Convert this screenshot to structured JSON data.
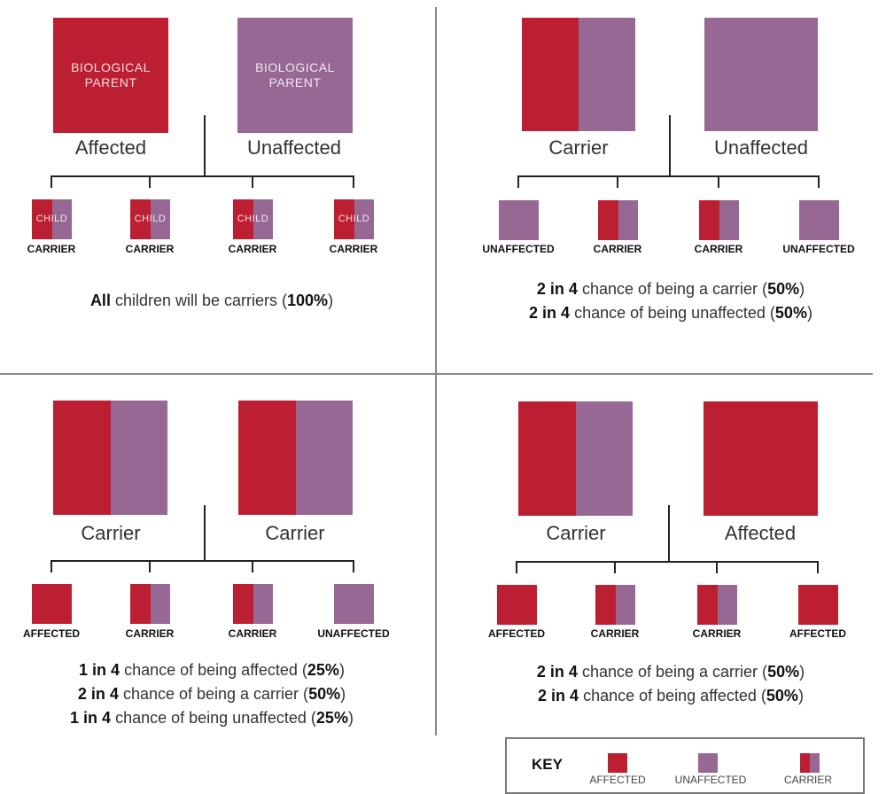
{
  "colors": {
    "affected": "#bd1f32",
    "unaffected": "#966893",
    "line": "#222222"
  },
  "panels": [
    {
      "id": "top-left",
      "parents": [
        {
          "type": "affected",
          "text": [
            "BIOLOGICAL",
            "PARENT"
          ],
          "label": "Affected"
        },
        {
          "type": "unaffected",
          "text": [
            "BIOLOGICAL",
            "PARENT"
          ],
          "label": "Unaffected"
        }
      ],
      "children": [
        {
          "type": "carrier",
          "text": "CHILD",
          "label": "CARRIER"
        },
        {
          "type": "carrier",
          "text": "CHILD",
          "label": "CARRIER"
        },
        {
          "type": "carrier",
          "text": "CHILD",
          "label": "CARRIER"
        },
        {
          "type": "carrier",
          "text": "CHILD",
          "label": "CARRIER"
        }
      ],
      "summary": [
        [
          {
            "b": true,
            "t": "All"
          },
          {
            "b": false,
            "t": " children will be carriers ("
          },
          {
            "b": true,
            "t": "100%"
          },
          {
            "b": false,
            "t": ")"
          }
        ]
      ]
    },
    {
      "id": "top-right",
      "parents": [
        {
          "type": "carrier",
          "text": [],
          "label": "Carrier"
        },
        {
          "type": "unaffected",
          "text": [],
          "label": "Unaffected"
        }
      ],
      "children": [
        {
          "type": "unaffected",
          "text": "",
          "label": "UNAFFECTED"
        },
        {
          "type": "carrier",
          "text": "",
          "label": "CARRIER"
        },
        {
          "type": "carrier",
          "text": "",
          "label": "CARRIER"
        },
        {
          "type": "unaffected",
          "text": "",
          "label": "UNAFFECTED"
        }
      ],
      "summary": [
        [
          {
            "b": true,
            "t": "2 in 4"
          },
          {
            "b": false,
            "t": " chance of being a carrier ("
          },
          {
            "b": true,
            "t": "50%"
          },
          {
            "b": false,
            "t": ")"
          }
        ],
        [
          {
            "b": true,
            "t": "2 in 4"
          },
          {
            "b": false,
            "t": " chance of being unaffected ("
          },
          {
            "b": true,
            "t": "50%"
          },
          {
            "b": false,
            "t": ")"
          }
        ]
      ]
    },
    {
      "id": "bottom-left",
      "parents": [
        {
          "type": "carrier",
          "text": [],
          "label": "Carrier"
        },
        {
          "type": "carrier",
          "text": [],
          "label": "Carrier"
        }
      ],
      "children": [
        {
          "type": "affected",
          "text": "",
          "label": "AFFECTED"
        },
        {
          "type": "carrier",
          "text": "",
          "label": "CARRIER"
        },
        {
          "type": "carrier",
          "text": "",
          "label": "CARRIER"
        },
        {
          "type": "unaffected",
          "text": "",
          "label": "UNAFFECTED"
        }
      ],
      "summary": [
        [
          {
            "b": true,
            "t": "1 in 4"
          },
          {
            "b": false,
            "t": " chance of being affected ("
          },
          {
            "b": true,
            "t": "25%"
          },
          {
            "b": false,
            "t": ")"
          }
        ],
        [
          {
            "b": true,
            "t": "2 in 4"
          },
          {
            "b": false,
            "t": " chance of being a carrier ("
          },
          {
            "b": true,
            "t": "50%"
          },
          {
            "b": false,
            "t": ")"
          }
        ],
        [
          {
            "b": true,
            "t": "1 in 4"
          },
          {
            "b": false,
            "t": " chance of being unaffected ("
          },
          {
            "b": true,
            "t": "25%"
          },
          {
            "b": false,
            "t": ")"
          }
        ]
      ]
    },
    {
      "id": "bottom-right",
      "parents": [
        {
          "type": "carrier",
          "text": [],
          "label": "Carrier"
        },
        {
          "type": "affected",
          "text": [],
          "label": "Affected"
        }
      ],
      "children": [
        {
          "type": "affected",
          "text": "",
          "label": "AFFECTED"
        },
        {
          "type": "carrier",
          "text": "",
          "label": "CARRIER"
        },
        {
          "type": "carrier",
          "text": "",
          "label": "CARRIER"
        },
        {
          "type": "affected",
          "text": "",
          "label": "AFFECTED"
        }
      ],
      "summary": [
        [
          {
            "b": true,
            "t": "2 in 4"
          },
          {
            "b": false,
            "t": " chance of being a carrier ("
          },
          {
            "b": true,
            "t": "50%"
          },
          {
            "b": false,
            "t": ")"
          }
        ],
        [
          {
            "b": true,
            "t": "2 in 4"
          },
          {
            "b": false,
            "t": " chance of being affected ("
          },
          {
            "b": true,
            "t": "50%"
          },
          {
            "b": false,
            "t": ")"
          }
        ]
      ]
    }
  ],
  "key": {
    "title": "KEY",
    "items": [
      {
        "type": "affected",
        "label": "AFFECTED"
      },
      {
        "type": "unaffected",
        "label": "UNAFFECTED"
      },
      {
        "type": "carrier",
        "label": "CARRIER"
      }
    ]
  }
}
